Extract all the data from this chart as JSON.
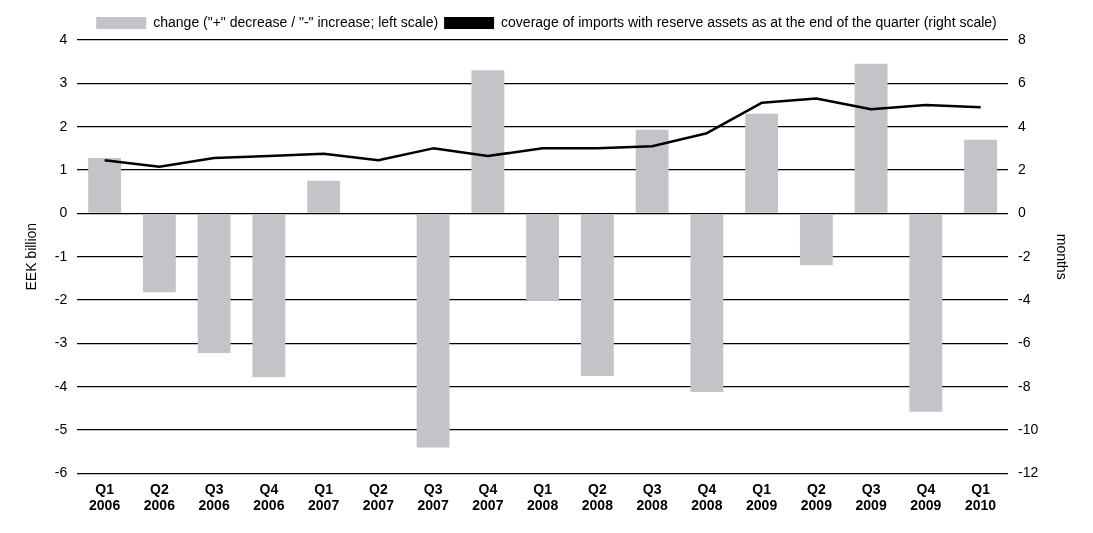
{
  "chart_data": {
    "type": "bar",
    "categories": [
      "Q1 2006",
      "Q2 2006",
      "Q3 2006",
      "Q4 2006",
      "Q1 2007",
      "Q2 2007",
      "Q3 2007",
      "Q4 2007",
      "Q1 2008",
      "Q2 2008",
      "Q3 2008",
      "Q4 2008",
      "Q1 2009",
      "Q2 2009",
      "Q3 2009",
      "Q4 2009",
      "Q1 2010"
    ],
    "series": [
      {
        "name": "change (\"+\" decrease / \"-\" increase; left scale)",
        "color": "#c3c4c8",
        "values": [
          1.28,
          -1.82,
          -3.22,
          -3.78,
          0.75,
          -0.02,
          -5.4,
          3.3,
          -2.0,
          -3.75,
          1.93,
          -4.12,
          2.3,
          -1.2,
          3.45,
          -4.58,
          1.7
        ]
      },
      {
        "name": "coverage of imports with reserve assets as at the end of the quarter (right scale)",
        "type": "line",
        "axis": "y2",
        "color": "#000000",
        "values": [
          2.45,
          2.15,
          2.55,
          2.65,
          2.75,
          2.45,
          3.0,
          2.65,
          3.0,
          3.0,
          3.1,
          3.7,
          5.1,
          5.3,
          4.8,
          5.0,
          4.9
        ]
      }
    ],
    "ylabel": "EEK billion",
    "y2label": "months",
    "ylim": [
      -6,
      4
    ],
    "yticks": [
      -6,
      -5,
      -4,
      -3,
      -2,
      -1,
      0,
      1,
      2,
      3,
      4
    ],
    "y2lim": [
      -12,
      8
    ],
    "y2ticks": [
      -12,
      -10,
      -8,
      -6,
      -4,
      -2,
      0,
      2,
      4,
      6,
      8
    ],
    "grid": "y",
    "legend": "top",
    "marker": "none",
    "line_style": "solid"
  }
}
